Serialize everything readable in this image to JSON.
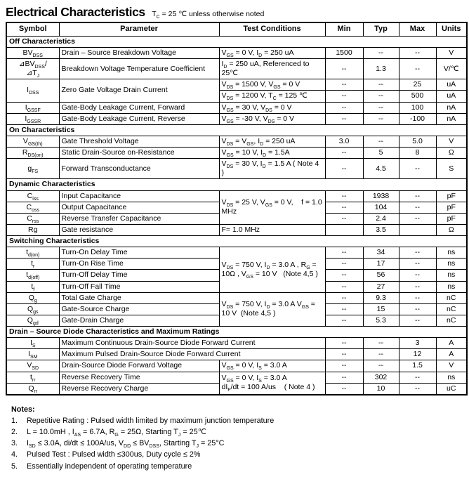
{
  "page": {
    "title": "Electrical Characteristics",
    "subtitle": "T~C~ = 25 ℃ unless otherwise noted"
  },
  "table": {
    "columns": [
      "Symbol",
      "Parameter",
      "Test Conditions",
      "Min",
      "Typ",
      "Max",
      "Units"
    ],
    "rows": [
      {
        "type": "section",
        "label": "Off Characteristics"
      },
      {
        "type": "data",
        "cells": [
          {
            "role": "symbol",
            "text": "BV~DSS~"
          },
          {
            "role": "parameter",
            "text": "Drain – Source Breakdown Voltage"
          },
          {
            "role": "conditions",
            "text": "V~GS~ = 0 V, I~D~ = 250 uA"
          },
          {
            "role": "min",
            "text": "1500"
          },
          {
            "role": "typ",
            "text": "--"
          },
          {
            "role": "max",
            "text": "--"
          },
          {
            "role": "units",
            "text": "V"
          }
        ]
      },
      {
        "type": "data",
        "cells": [
          {
            "role": "symbol",
            "text": "⊿BV~DSS~/\n⊿T~J~"
          },
          {
            "role": "parameter",
            "text": "Breakdown Voltage Temperature Coefficient"
          },
          {
            "role": "conditions",
            "text": "I~D~ = 250 uA, Referenced to 25℃"
          },
          {
            "role": "min",
            "text": "--"
          },
          {
            "role": "typ",
            "text": "1.3"
          },
          {
            "role": "max",
            "text": "--"
          },
          {
            "role": "units",
            "text": "V/℃"
          }
        ]
      },
      {
        "type": "data",
        "cells": [
          {
            "role": "symbol",
            "text": "I~DSS~",
            "rs": 2
          },
          {
            "role": "parameter",
            "text": "Zero Gate Voltage Drain Current",
            "rs": 2
          },
          {
            "role": "conditions",
            "text": "V~DS~ = 1500 V, V~GS~ = 0 V"
          },
          {
            "role": "min",
            "text": "--"
          },
          {
            "role": "typ",
            "text": "--"
          },
          {
            "role": "max",
            "text": "25"
          },
          {
            "role": "units",
            "text": "uA"
          }
        ]
      },
      {
        "type": "data",
        "cells": [
          {
            "role": "conditions",
            "text": "V~DS~ = 1200 V, T~C~ = 125 ℃"
          },
          {
            "role": "min",
            "text": "--"
          },
          {
            "role": "typ",
            "text": "--"
          },
          {
            "role": "max",
            "text": "500"
          },
          {
            "role": "units",
            "text": "uA"
          }
        ]
      },
      {
        "type": "data",
        "cells": [
          {
            "role": "symbol",
            "text": "I~GSSF~"
          },
          {
            "role": "parameter",
            "text": "Gate-Body Leakage Current, Forward"
          },
          {
            "role": "conditions",
            "text": "V~GS~ = 30 V, V~DS~ = 0 V"
          },
          {
            "role": "min",
            "text": "--"
          },
          {
            "role": "typ",
            "text": "--"
          },
          {
            "role": "max",
            "text": "100"
          },
          {
            "role": "units",
            "text": "nA"
          }
        ]
      },
      {
        "type": "data",
        "cells": [
          {
            "role": "symbol",
            "text": "I~GSSR~"
          },
          {
            "role": "parameter",
            "text": "Gate-Body Leakage Current, Reverse"
          },
          {
            "role": "conditions",
            "text": "V~GS~ = -30 V, V~DS~ = 0 V"
          },
          {
            "role": "min",
            "text": "--"
          },
          {
            "role": "typ",
            "text": "--"
          },
          {
            "role": "max",
            "text": "-100"
          },
          {
            "role": "units",
            "text": "nA"
          }
        ]
      },
      {
        "type": "section",
        "label": "On Characteristics"
      },
      {
        "type": "data",
        "cells": [
          {
            "role": "symbol",
            "text": "V~GS(th)~"
          },
          {
            "role": "parameter",
            "text": "Gate Threshold Voltage"
          },
          {
            "role": "conditions",
            "text": "V~DS~ = V~GS~, I~D~ = 250 uA"
          },
          {
            "role": "min",
            "text": "3.0"
          },
          {
            "role": "typ",
            "text": "--"
          },
          {
            "role": "max",
            "text": "5.0"
          },
          {
            "role": "units",
            "text": "V"
          }
        ]
      },
      {
        "type": "data",
        "cells": [
          {
            "role": "symbol",
            "text": "R~DS(on)~"
          },
          {
            "role": "parameter",
            "text": "Static Drain-Source on-Resistance"
          },
          {
            "role": "conditions",
            "text": "V~GS~ = 10 V, I~D~ = 1.5A"
          },
          {
            "role": "min",
            "text": "--"
          },
          {
            "role": "typ",
            "text": "5"
          },
          {
            "role": "max",
            "text": "8"
          },
          {
            "role": "units",
            "text": "Ω"
          }
        ]
      },
      {
        "type": "data",
        "cells": [
          {
            "role": "symbol",
            "text": "g~FS~"
          },
          {
            "role": "parameter",
            "text": "Forward Transconductance"
          },
          {
            "role": "conditions",
            "text": "V~DS~ = 30 V, I~D~ = 1.5 A ( Note 4 )"
          },
          {
            "role": "min",
            "text": "--"
          },
          {
            "role": "typ",
            "text": "4.5"
          },
          {
            "role": "max",
            "text": "--"
          },
          {
            "role": "units",
            "text": "S"
          }
        ]
      },
      {
        "type": "section",
        "label": "Dynamic Characteristics"
      },
      {
        "type": "data",
        "cells": [
          {
            "role": "symbol",
            "text": "C~iss~"
          },
          {
            "role": "parameter",
            "text": "Input Capacitance"
          },
          {
            "role": "conditions",
            "text": "V~DS~ = 25 V, V~GS~ = 0 V,    f = 1.0 MHz",
            "rs": 3
          },
          {
            "role": "min",
            "text": "--"
          },
          {
            "role": "typ",
            "text": "1938"
          },
          {
            "role": "max",
            "text": "--"
          },
          {
            "role": "units",
            "text": "pF"
          }
        ]
      },
      {
        "type": "data",
        "cells": [
          {
            "role": "symbol",
            "text": "C~oss~"
          },
          {
            "role": "parameter",
            "text": "Output Capacitance"
          },
          {
            "role": "min",
            "text": "--"
          },
          {
            "role": "typ",
            "text": "104"
          },
          {
            "role": "max",
            "text": "--"
          },
          {
            "role": "units",
            "text": "pF"
          }
        ]
      },
      {
        "type": "data",
        "cells": [
          {
            "role": "symbol",
            "text": "C~rss~"
          },
          {
            "role": "parameter",
            "text": "Reverse Transfer Capacitance"
          },
          {
            "role": "min",
            "text": "--"
          },
          {
            "role": "typ",
            "text": "2.4"
          },
          {
            "role": "max",
            "text": "--"
          },
          {
            "role": "units",
            "text": "pF"
          }
        ]
      },
      {
        "type": "data",
        "cells": [
          {
            "role": "symbol",
            "text": "Rg"
          },
          {
            "role": "parameter",
            "text": "Gate resistance"
          },
          {
            "role": "conditions",
            "text": "F= 1.0 MHz"
          },
          {
            "role": "min",
            "text": ""
          },
          {
            "role": "typ",
            "text": "3.5"
          },
          {
            "role": "max",
            "text": ""
          },
          {
            "role": "units",
            "text": "Ω"
          }
        ]
      },
      {
        "type": "section",
        "label": "Switching Characteristics"
      },
      {
        "type": "data",
        "cells": [
          {
            "role": "symbol",
            "text": "t~d(on)~"
          },
          {
            "role": "parameter",
            "text": "Turn-On Delay Time"
          },
          {
            "role": "conditions",
            "text": "V~DS~ = 750 V, I~D~ = 3.0 A , R~G~ = 10Ω , V~GS~ = 10 V   (Note 4,5 )",
            "rs": 4
          },
          {
            "role": "min",
            "text": "--"
          },
          {
            "role": "typ",
            "text": "34"
          },
          {
            "role": "max",
            "text": "--"
          },
          {
            "role": "units",
            "text": "ns"
          }
        ]
      },
      {
        "type": "data",
        "cells": [
          {
            "role": "symbol",
            "text": "t~r~"
          },
          {
            "role": "parameter",
            "text": "Turn-On Rise Time"
          },
          {
            "role": "min",
            "text": "--"
          },
          {
            "role": "typ",
            "text": "17"
          },
          {
            "role": "max",
            "text": "--"
          },
          {
            "role": "units",
            "text": "ns"
          }
        ]
      },
      {
        "type": "data",
        "cells": [
          {
            "role": "symbol",
            "text": "t~d(off)~"
          },
          {
            "role": "parameter",
            "text": "Turn-Off Delay Time"
          },
          {
            "role": "min",
            "text": "--"
          },
          {
            "role": "typ",
            "text": "56"
          },
          {
            "role": "max",
            "text": "--"
          },
          {
            "role": "units",
            "text": "ns"
          }
        ]
      },
      {
        "type": "data",
        "cells": [
          {
            "role": "symbol",
            "text": "t~f~"
          },
          {
            "role": "parameter",
            "text": "Turn-Off Fall Time"
          },
          {
            "role": "min",
            "text": "--"
          },
          {
            "role": "typ",
            "text": "27"
          },
          {
            "role": "max",
            "text": "--"
          },
          {
            "role": "units",
            "text": "ns"
          }
        ]
      },
      {
        "type": "data",
        "cells": [
          {
            "role": "symbol",
            "text": "Q~g~"
          },
          {
            "role": "parameter",
            "text": "Total Gate Charge"
          },
          {
            "role": "conditions",
            "text": "V~DS~ = 750 V, I~D~ = 3.0 A V~GS~ = 10 V  (Note 4,5 )",
            "rs": 3
          },
          {
            "role": "min",
            "text": "--"
          },
          {
            "role": "typ",
            "text": "9.3"
          },
          {
            "role": "max",
            "text": "--"
          },
          {
            "role": "units",
            "text": "nC"
          }
        ]
      },
      {
        "type": "data",
        "cells": [
          {
            "role": "symbol",
            "text": "Q~gs~"
          },
          {
            "role": "parameter",
            "text": "Gate-Source Charge"
          },
          {
            "role": "min",
            "text": "--"
          },
          {
            "role": "typ",
            "text": "15"
          },
          {
            "role": "max",
            "text": "--"
          },
          {
            "role": "units",
            "text": "nC"
          }
        ]
      },
      {
        "type": "data",
        "cells": [
          {
            "role": "symbol",
            "text": "Q~gd~"
          },
          {
            "role": "parameter",
            "text": "Gate-Drain Charge"
          },
          {
            "role": "min",
            "text": "--"
          },
          {
            "role": "typ",
            "text": "5.3"
          },
          {
            "role": "max",
            "text": "--"
          },
          {
            "role": "units",
            "text": "nC"
          }
        ]
      },
      {
        "type": "section",
        "label": "Drain – Source Diode Characteristics and Maximum Ratings"
      },
      {
        "type": "data",
        "cells": [
          {
            "role": "symbol",
            "text": "I~S~"
          },
          {
            "role": "parameter",
            "text": "Maximum Continuous Drain-Source Diode Forward Current",
            "cs": 2
          },
          {
            "role": "min",
            "text": "--"
          },
          {
            "role": "typ",
            "text": "--"
          },
          {
            "role": "max",
            "text": "3"
          },
          {
            "role": "units",
            "text": "A"
          }
        ]
      },
      {
        "type": "data",
        "cells": [
          {
            "role": "symbol",
            "text": "I~SM~"
          },
          {
            "role": "parameter",
            "text": "Maximum Pulsed Drain-Source Diode Forward Current",
            "cs": 2
          },
          {
            "role": "min",
            "text": "--"
          },
          {
            "role": "typ",
            "text": "--"
          },
          {
            "role": "max",
            "text": "12"
          },
          {
            "role": "units",
            "text": "A"
          }
        ]
      },
      {
        "type": "data",
        "cells": [
          {
            "role": "symbol",
            "text": "V~SD~"
          },
          {
            "role": "parameter",
            "text": "Drain-Source Diode Forward Voltage"
          },
          {
            "role": "conditions",
            "text": "V~GS~ = 0 V, I~S~ = 3.0 A"
          },
          {
            "role": "min",
            "text": "--"
          },
          {
            "role": "typ",
            "text": "--"
          },
          {
            "role": "max",
            "text": "1.5"
          },
          {
            "role": "units",
            "text": "V"
          }
        ]
      },
      {
        "type": "data",
        "cells": [
          {
            "role": "symbol",
            "text": "t~rr~"
          },
          {
            "role": "parameter",
            "text": "Reverse Recovery Time"
          },
          {
            "role": "conditions",
            "text": "V~GS~ = 0 V, I~S~ = 3.0 A\ndI~F~/dt = 100 A/us    ( Note 4 )",
            "rs": 2
          },
          {
            "role": "min",
            "text": "--"
          },
          {
            "role": "typ",
            "text": "302"
          },
          {
            "role": "max",
            "text": "--"
          },
          {
            "role": "units",
            "text": "ns"
          }
        ]
      },
      {
        "type": "data",
        "cells": [
          {
            "role": "symbol",
            "text": "Q~rr~"
          },
          {
            "role": "parameter",
            "text": "Reverse Recovery Charge"
          },
          {
            "role": "min",
            "text": "--"
          },
          {
            "role": "typ",
            "text": "10"
          },
          {
            "role": "max",
            "text": "--"
          },
          {
            "role": "units",
            "text": "uC"
          }
        ]
      }
    ]
  },
  "notes": {
    "header": "Notes:",
    "items": [
      "Repetitive Rating : Pulsed width limited by maximum junction temperature",
      "L = 10.0mH , I~AS~ = 6.7A, R~G~ = 25Ω, Starting T~J~ = 25℃",
      "I~SD~ ≤ 3.0A, di/dt ≤ 100A/us, V~DD~ ≤ BV~DSS~, Starting T~J~ = 25°C",
      "Pulsed Test : Pulsed width ≤300us, Duty cycle ≤ 2%",
      "Essentially independent of operating temperature"
    ]
  }
}
